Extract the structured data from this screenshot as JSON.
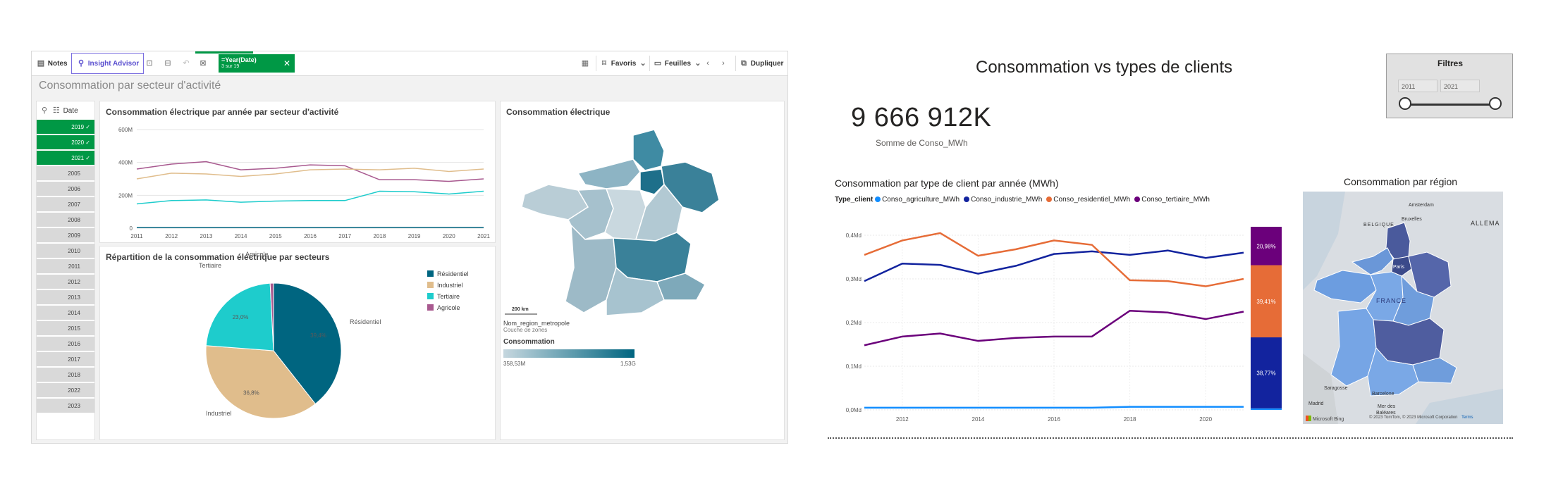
{
  "qlik": {
    "toolbar": {
      "notes_label": "Notes",
      "insight_label": "Insight Advisor",
      "selection_field": "=Year(Date)",
      "selection_count": "3 sur 19",
      "favoris_label": "Favoris",
      "feuilles_label": "Feuilles",
      "dupliquer_label": "Dupliquer"
    },
    "sheet_title": "Consommation par secteur d'activité",
    "filter": {
      "label": "Date",
      "years": [
        {
          "label": "2019",
          "selected": true
        },
        {
          "label": "2020",
          "selected": true
        },
        {
          "label": "2021",
          "selected": true
        },
        {
          "label": "2005",
          "selected": false
        },
        {
          "label": "2006",
          "selected": false
        },
        {
          "label": "2007",
          "selected": false
        },
        {
          "label": "2008",
          "selected": false
        },
        {
          "label": "2009",
          "selected": false
        },
        {
          "label": "2010",
          "selected": false
        },
        {
          "label": "2011",
          "selected": false
        },
        {
          "label": "2012",
          "selected": false
        },
        {
          "label": "2013",
          "selected": false
        },
        {
          "label": "2014",
          "selected": false
        },
        {
          "label": "2015",
          "selected": false
        },
        {
          "label": "2016",
          "selected": false
        },
        {
          "label": "2017",
          "selected": false
        },
        {
          "label": "2018",
          "selected": false
        },
        {
          "label": "2022",
          "selected": false
        },
        {
          "label": "2023",
          "selected": false
        }
      ]
    },
    "line_chart_title": "Consommation électrique par année par secteur d'activité",
    "pie_title": "Répartition de la consommation électrique par secteurs",
    "map_title": "Consommation électrique",
    "map_scale": "200 km",
    "map_layer_name": "Nom_region_metropole",
    "map_layer_sub": "Couche de zones",
    "map_legend_title": "Consommation",
    "map_legend_min": "358,53M",
    "map_legend_max": "1,53G",
    "colors": {
      "selected": "#009845",
      "teal": "#006580",
      "pink": "#a8598f",
      "tan": "#e0bd8c",
      "cyan": "#1ecccc"
    }
  },
  "pbi": {
    "title": "Consommation vs types de clients",
    "kpi_value": "9 666 912K",
    "kpi_label": "Somme de Conso_MWh",
    "filters": {
      "title": "Filtres",
      "from": "2011",
      "to": "2021"
    },
    "line_chart_title": "Consommation par type de client par année (MWh)",
    "legend_title": "Type_client",
    "map_title": "Consommation par région",
    "map_labels": [
      "BELGIQUE",
      "ALLEMA",
      "FRANCE",
      "Amsterdam",
      "Bruxelles",
      "Paris",
      "Madrid",
      "Barcelone",
      "Saragosse",
      "Mer des",
      "Baléares"
    ],
    "map_copyright": "© 2023 TomTom, © 2023 Microsoft Corporation",
    "map_terms": "Terms",
    "map_logo": "Microsoft Bing",
    "colors": {
      "agri": "#118dff",
      "indus": "#12239e",
      "resid": "#e66c37",
      "tert": "#6b007b"
    }
  },
  "chart_data": [
    {
      "type": "line",
      "title": "Consommation électrique par année par secteur d'activité",
      "x": [
        2011,
        2012,
        2013,
        2014,
        2015,
        2016,
        2017,
        2018,
        2019,
        2020,
        2021
      ],
      "yticks": [
        "0",
        "200M",
        "400M",
        "600M"
      ],
      "ylim": [
        0,
        600
      ],
      "series": [
        {
          "key": "pink",
          "values": [
            360,
            390,
            405,
            355,
            365,
            385,
            380,
            295,
            295,
            285,
            300
          ]
        },
        {
          "key": "tan",
          "values": [
            300,
            335,
            330,
            315,
            330,
            355,
            360,
            355,
            365,
            345,
            360
          ]
        },
        {
          "key": "cyan",
          "values": [
            148,
            168,
            172,
            158,
            165,
            168,
            168,
            225,
            222,
            208,
            225
          ]
        },
        {
          "key": "teal",
          "values": [
            4,
            4,
            4,
            4,
            4,
            4,
            4,
            5,
            5,
            5,
            5
          ]
        }
      ]
    },
    {
      "type": "pie",
      "title": "Répartition de la consommation électrique par secteurs",
      "slices": [
        {
          "name": "Résidentiel",
          "value": 39.4,
          "label": "39,4%",
          "color": "#006580"
        },
        {
          "name": "Industriel",
          "value": 36.8,
          "label": "36,8%",
          "color": "#e0bd8c"
        },
        {
          "name": "Tertiaire",
          "value": 23.0,
          "label": "23,0%",
          "color": "#1ecccc"
        },
        {
          "name": "Agricole",
          "value": 0.8,
          "label": "",
          "color": "#a8598f"
        }
      ]
    },
    {
      "type": "line",
      "title": "Consommation par type de client par année (MWh)",
      "x": [
        2011,
        2012,
        2013,
        2014,
        2015,
        2016,
        2017,
        2018,
        2019,
        2020,
        2021
      ],
      "xticks": [
        "2012",
        "2014",
        "2016",
        "2018",
        "2020"
      ],
      "yticks": [
        "0,0Md",
        "0,1Md",
        "0,2Md",
        "0,3Md",
        "0,4Md"
      ],
      "ylim": [
        0,
        0.4
      ],
      "series": [
        {
          "name": "Conso_agriculture_MWh",
          "key": "agri",
          "values": [
            0.005,
            0.005,
            0.005,
            0.005,
            0.005,
            0.005,
            0.005,
            0.007,
            0.007,
            0.007,
            0.007
          ]
        },
        {
          "name": "Conso_industrie_MWh",
          "key": "indus",
          "values": [
            0.295,
            0.335,
            0.332,
            0.312,
            0.33,
            0.357,
            0.363,
            0.355,
            0.365,
            0.348,
            0.36
          ]
        },
        {
          "name": "Conso_residentiel_MWh",
          "key": "resid",
          "values": [
            0.355,
            0.388,
            0.405,
            0.353,
            0.368,
            0.388,
            0.378,
            0.297,
            0.295,
            0.283,
            0.3
          ]
        },
        {
          "name": "Conso_tertiaire_MWh",
          "key": "tert",
          "values": [
            0.148,
            0.168,
            0.175,
            0.158,
            0.165,
            0.168,
            0.168,
            0.227,
            0.223,
            0.208,
            0.225
          ]
        }
      ]
    },
    {
      "type": "bar",
      "stacked": true,
      "segments": [
        {
          "key": "agri",
          "value": 0.84,
          "label": ""
        },
        {
          "key": "indus",
          "value": 38.77,
          "label": "38,77%"
        },
        {
          "key": "resid",
          "value": 39.41,
          "label": "39,41%"
        },
        {
          "key": "tert",
          "value": 20.98,
          "label": "20,98%"
        }
      ]
    }
  ]
}
